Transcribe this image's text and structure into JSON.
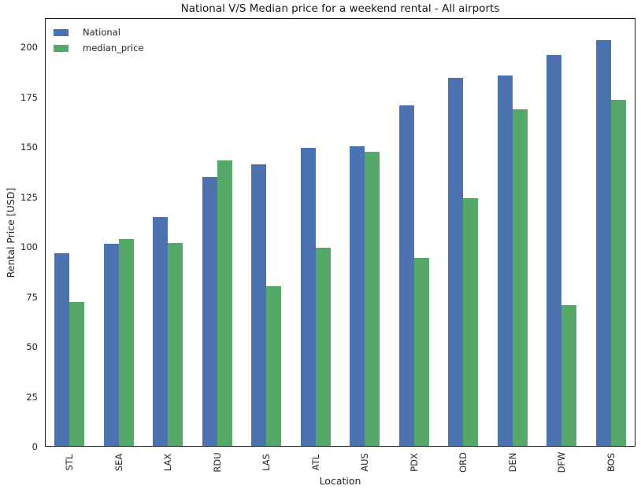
{
  "chart_data": {
    "type": "bar",
    "title": "National V/S Median price for a weekend rental - All airports",
    "xlabel": "Location",
    "ylabel": "Rental Price [USD]",
    "categories": [
      "STL",
      "SEA",
      "LAX",
      "RDU",
      "LAS",
      "ATL",
      "AUS",
      "PDX",
      "ORD",
      "DEN",
      "DFW",
      "BOS"
    ],
    "series": [
      {
        "name": "National",
        "color": "#4C72B0",
        "values": [
          97,
          101.5,
          115,
          135,
          141.5,
          149.5,
          150.5,
          171,
          184.5,
          186,
          196,
          203.5
        ]
      },
      {
        "name": "median_price",
        "color": "#55A868",
        "values": [
          72.5,
          104,
          102,
          143.5,
          80.5,
          99.5,
          147.5,
          94.5,
          124.5,
          169,
          71,
          173.5
        ]
      }
    ],
    "ylim": [
      0,
      214.6
    ],
    "yticks": [
      0,
      25,
      50,
      75,
      100,
      125,
      150,
      175,
      200
    ],
    "grid": false,
    "legend_position": "upper-left",
    "bar_orientation": "vertical",
    "x_tick_rotation": 90
  },
  "legend": {
    "items": [
      {
        "label": "National",
        "color": "#4C72B0"
      },
      {
        "label": "median_price",
        "color": "#55A868"
      }
    ]
  },
  "colors": {
    "background": "#ffffff",
    "spine": "#1a1a1a",
    "text": "#262626"
  }
}
